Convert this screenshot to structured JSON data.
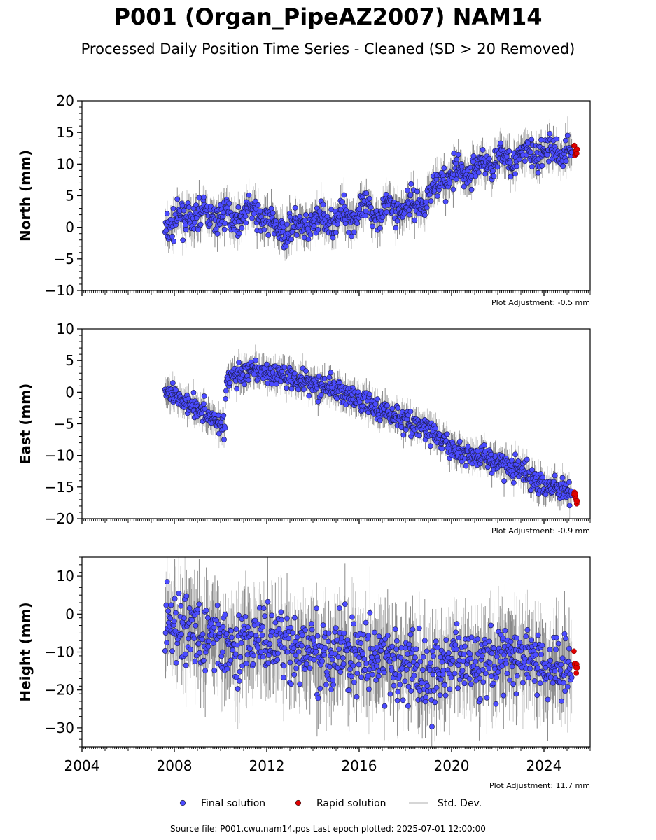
{
  "title": "P001 (Organ_PipeAZ2007) NAM14",
  "subtitle": "Processed Daily Position Time Series - Cleaned (SD > 20 Removed)",
  "source_line": "Source file: P001.cwu.nam14.pos  Last epoch plotted: 2025-07-01 12:00:00",
  "colors": {
    "final": "#4b4bff",
    "rapid": "#e00000",
    "std": "#c8c8c8",
    "std_dark": "#555555"
  },
  "legend": [
    {
      "label": "Final solution",
      "marker": "circle",
      "color": "#4b4bff"
    },
    {
      "label": "Rapid solution",
      "marker": "circle",
      "color": "#e00000"
    },
    {
      "label": "Std. Dev.",
      "marker": "line",
      "color": "#c8c8c8"
    }
  ],
  "chart_data": [
    {
      "type": "scatter",
      "ylabel": "North (mm)",
      "xlim": [
        2004.0,
        2026.0
      ],
      "ylim": [
        -10,
        20
      ],
      "yticks": [
        -10,
        -5,
        0,
        5,
        10,
        15,
        20
      ],
      "xticks": [
        2004,
        2008,
        2012,
        2016,
        2020,
        2024
      ],
      "xtick_labels_shown": false,
      "adjustment": "Plot Adjustment: -0.5 mm",
      "noise_sd": 1.1,
      "series": [
        {
          "name": "Final solution",
          "x": [
            2007.6,
            2008.5,
            2009.5,
            2010.5,
            2011.4,
            2011.7,
            2012.5,
            2013.5,
            2014.5,
            2015.5,
            2016.5,
            2017.5,
            2018.5,
            2019.0,
            2019.5,
            2020.5,
            2021.5,
            2022.5,
            2023.5,
            2024.5,
            2025.2
          ],
          "y": [
            0.2,
            1.5,
            2.0,
            1.5,
            2.5,
            2.0,
            -0.5,
            0.0,
            1.0,
            2.0,
            2.5,
            3.0,
            3.5,
            5.0,
            7.5,
            8.5,
            10.0,
            11.0,
            11.5,
            12.0,
            12.0
          ]
        },
        {
          "name": "Rapid solution",
          "x": [
            2025.3,
            2025.45
          ],
          "y": [
            12.5,
            11.5
          ]
        }
      ]
    },
    {
      "type": "scatter",
      "ylabel": "East (mm)",
      "xlim": [
        2004.0,
        2026.0
      ],
      "ylim": [
        -20,
        10
      ],
      "yticks": [
        -20,
        -15,
        -10,
        -5,
        0,
        5,
        10
      ],
      "xticks": [
        2004,
        2008,
        2012,
        2016,
        2020,
        2024
      ],
      "xtick_labels_shown": false,
      "adjustment": "Plot Adjustment: -0.9 mm",
      "noise_sd": 0.9,
      "series": [
        {
          "name": "Final solution",
          "x": [
            2007.6,
            2008.3,
            2009.0,
            2009.8,
            2010.2,
            2010.25,
            2010.8,
            2012.0,
            2013.0,
            2014.0,
            2015.0,
            2016.0,
            2017.0,
            2018.0,
            2019.0,
            2020.0,
            2021.0,
            2022.0,
            2023.0,
            2024.0,
            2025.2
          ],
          "y": [
            0.0,
            -1.0,
            -2.5,
            -4.5,
            -5.5,
            2.0,
            3.0,
            3.0,
            2.5,
            1.5,
            0.5,
            -1.5,
            -3.0,
            -4.5,
            -6.0,
            -9.0,
            -10.0,
            -11.0,
            -12.5,
            -14.5,
            -15.5
          ]
        },
        {
          "name": "Rapid solution",
          "x": [
            2025.3,
            2025.45
          ],
          "y": [
            -16.0,
            -17.5
          ]
        }
      ]
    },
    {
      "type": "scatter",
      "ylabel": "Height (mm)",
      "xlim": [
        2004.0,
        2026.0
      ],
      "ylim": [
        -35,
        15
      ],
      "yticks": [
        -30,
        -20,
        -10,
        0,
        10
      ],
      "xticks": [
        2004,
        2008,
        2012,
        2016,
        2020,
        2024
      ],
      "xtick_labels": [
        "2004",
        "2008",
        "2012",
        "2016",
        "2020",
        "2024"
      ],
      "xtick_labels_shown": true,
      "adjustment": "Plot Adjustment: 11.7 mm",
      "noise_sd": 4.5,
      "series": [
        {
          "name": "Final solution",
          "x": [
            2007.6,
            2008.5,
            2009.5,
            2010.5,
            2011.5,
            2012.5,
            2013.5,
            2014.5,
            2015.5,
            2016.5,
            2017.5,
            2018.5,
            2019.0,
            2019.5,
            2020.5,
            2021.5,
            2022.5,
            2023.5,
            2024.5,
            2025.2
          ],
          "y": [
            -3,
            -4,
            -6,
            -8,
            -7,
            -8,
            -10,
            -11,
            -10,
            -12,
            -13,
            -15,
            -18,
            -14,
            -12,
            -11,
            -12,
            -12,
            -13,
            -14
          ]
        },
        {
          "name": "Rapid solution",
          "x": [
            2025.3,
            2025.45
          ],
          "y": [
            -12,
            -15
          ]
        }
      ]
    }
  ]
}
